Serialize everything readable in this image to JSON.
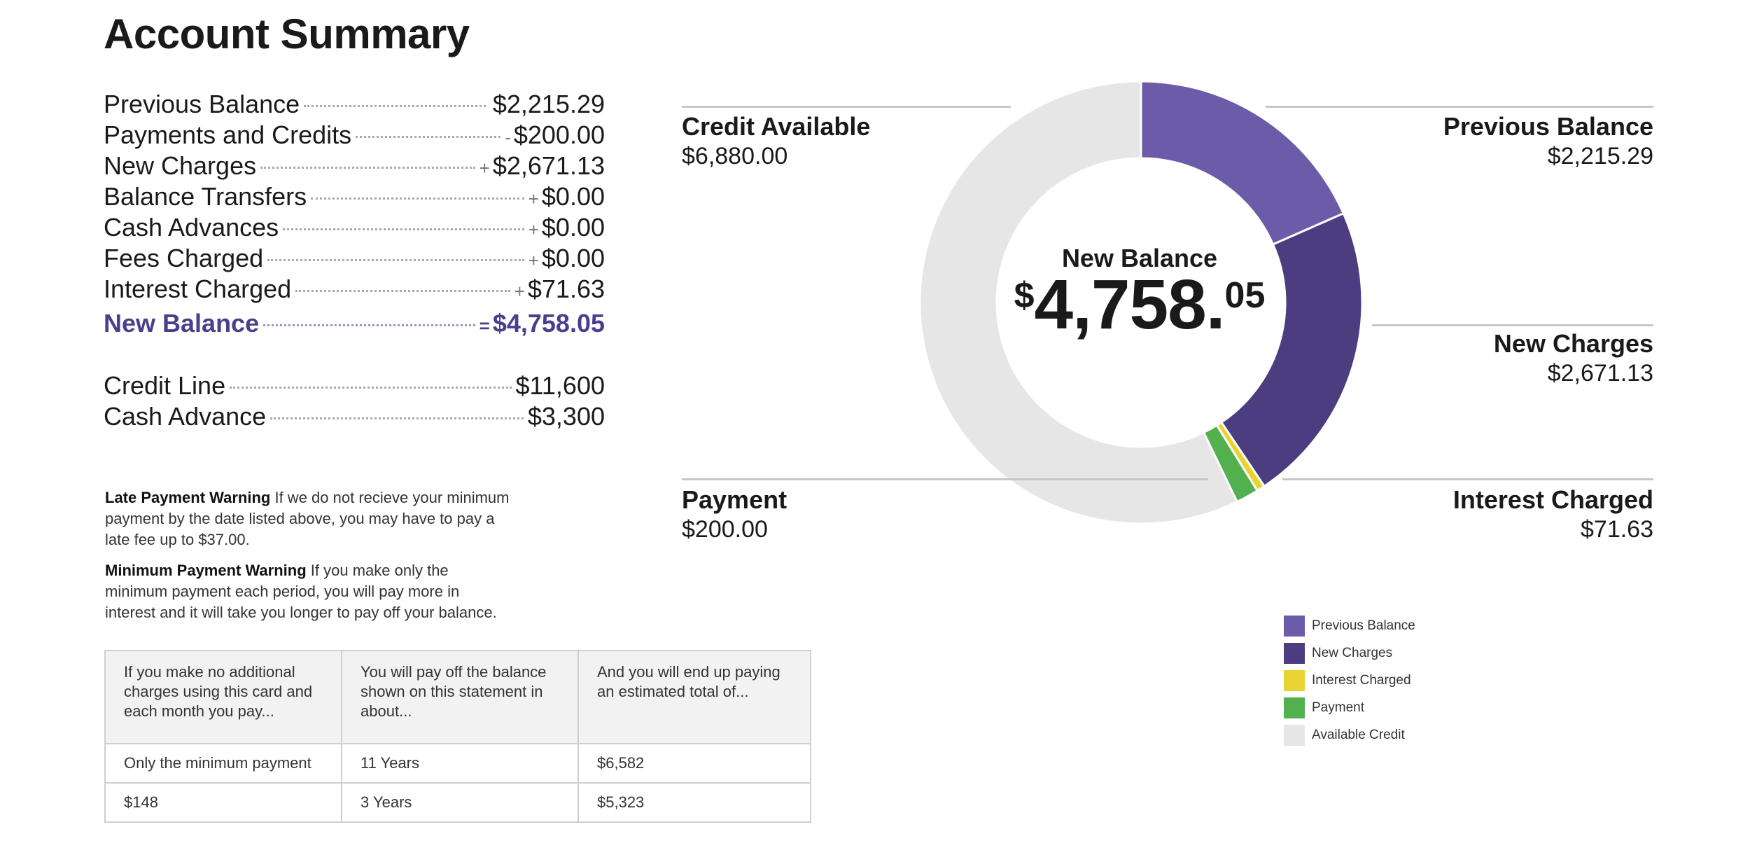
{
  "title": "Account Summary",
  "summary": [
    {
      "label": "Previous Balance",
      "sign": "",
      "value": "$2,215.29"
    },
    {
      "label": "Payments and Credits",
      "sign": "-",
      "value": "$200.00"
    },
    {
      "label": "New Charges",
      "sign": "+",
      "value": "$2,671.13"
    },
    {
      "label": "Balance Transfers",
      "sign": "+",
      "value": "$0.00"
    },
    {
      "label": "Cash Advances",
      "sign": "+",
      "value": "$0.00"
    },
    {
      "label": "Fees Charged",
      "sign": "+",
      "value": "$0.00"
    },
    {
      "label": "Interest Charged",
      "sign": "+",
      "value": "$71.63"
    }
  ],
  "new_balance": {
    "label": "New Balance",
    "sign": "=",
    "value": "$4,758.05"
  },
  "limits": [
    {
      "label": "Credit Line",
      "value": "$11,600"
    },
    {
      "label": "Cash Advance",
      "value": "$3,300"
    }
  ],
  "warnings": {
    "late": {
      "title": "Late Payment Warning",
      "text": "If we do not recieve your minimum payment by the date listed above, you may have to pay a late fee up to $37.00."
    },
    "minimum": {
      "title": "Minimum Payment Warning",
      "text": "If you make only the minimum payment each period, you will pay more in interest and it will take you longer to pay off your balance."
    }
  },
  "payoff_table": {
    "headers": [
      "If you make no additional charges using this card and each month you pay...",
      "You will pay off the balance shown on this statement in about...",
      "And you will end up paying an estimated total of..."
    ],
    "rows": [
      [
        "Only the minimum payment",
        "11 Years",
        "$6,582"
      ],
      [
        "$148",
        "3 Years",
        "$5,323"
      ]
    ]
  },
  "callouts": {
    "credit_available": {
      "title": "Credit Available",
      "value": "$6,880.00"
    },
    "previous_balance": {
      "title": "Previous Balance",
      "value": "$2,215.29"
    },
    "new_charges": {
      "title": "New Charges",
      "value": "$2,671.13"
    },
    "payment": {
      "title": "Payment",
      "value": "$200.00"
    },
    "interest_charged": {
      "title": "Interest Charged",
      "value": "$71.63"
    }
  },
  "center": {
    "title": "New Balance",
    "currency": "$",
    "main": "4,758.",
    "cents": "05"
  },
  "chart_data": {
    "type": "pie",
    "donut": true,
    "categories": [
      "Previous Balance",
      "New Charges",
      "Interest Charged",
      "Payment",
      "Available Credit"
    ],
    "values": [
      2215.29,
      2671.13,
      71.63,
      200.0,
      6880.0
    ],
    "colors": [
      "#6c5ba8",
      "#4b3d80",
      "#e8d332",
      "#52b04f",
      "#e6e6e6"
    ],
    "legend": "bottom-right"
  }
}
